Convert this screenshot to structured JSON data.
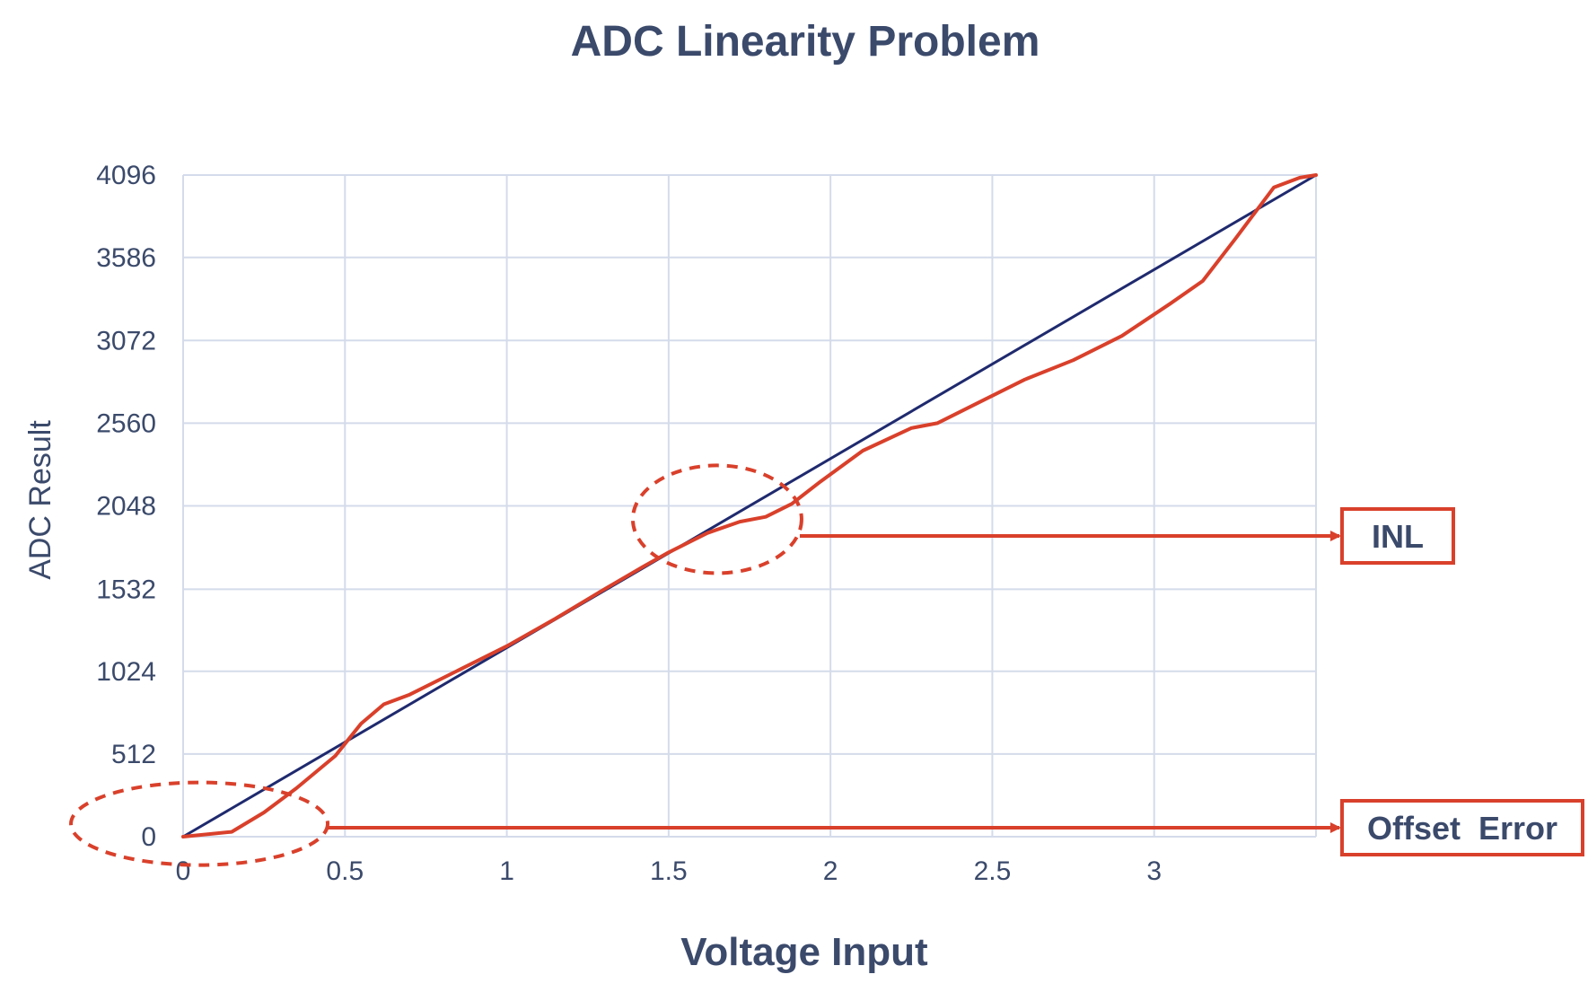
{
  "chart_data": {
    "type": "line",
    "title": "ADC Linearity Problem",
    "xlabel": "Voltage Input",
    "ylabel": "ADC Result",
    "xlim": [
      0,
      3.5
    ],
    "ylim": [
      0,
      4096
    ],
    "xticks": [
      0,
      0.5,
      1,
      1.5,
      2,
      2.5,
      3
    ],
    "xtick_labels": [
      "0",
      "0.5",
      "1",
      "1.5",
      "2",
      "2.5",
      "3"
    ],
    "yticks": [
      0,
      512,
      1024,
      1532,
      2048,
      2560,
      3072,
      3586,
      4096
    ],
    "ytick_labels": [
      "0",
      "512",
      "1024",
      "1532",
      "2048",
      "2560",
      "3072",
      "3586",
      "4096"
    ],
    "grid": true,
    "series": [
      {
        "color": "#1f2a6e",
        "x": [
          0,
          3.5
        ],
        "y": [
          0,
          4096
        ]
      },
      {
        "color": "#d9402b",
        "x": [
          0,
          0.15,
          0.25,
          0.35,
          0.47,
          0.55,
          0.62,
          0.7,
          0.85,
          1.0,
          1.15,
          1.3,
          1.42,
          1.5,
          1.62,
          1.72,
          1.8,
          1.88,
          1.97,
          2.1,
          2.25,
          2.33,
          2.47,
          2.6,
          2.75,
          2.9,
          3.05,
          3.15,
          3.25,
          3.37,
          3.45,
          3.5
        ],
        "y": [
          0,
          30,
          150,
          300,
          500,
          700,
          820,
          880,
          1030,
          1180,
          1350,
          1530,
          1670,
          1760,
          1880,
          1950,
          1980,
          2060,
          2200,
          2390,
          2530,
          2560,
          2700,
          2830,
          2950,
          3100,
          3300,
          3440,
          3700,
          4020,
          4080,
          4096
        ]
      }
    ],
    "annotations": [
      {
        "label": "INL",
        "marker_x": 1.65,
        "marker_y": 1965
      },
      {
        "label": "Offset  Error",
        "marker_x": 0.05,
        "marker_y": 80
      }
    ]
  }
}
